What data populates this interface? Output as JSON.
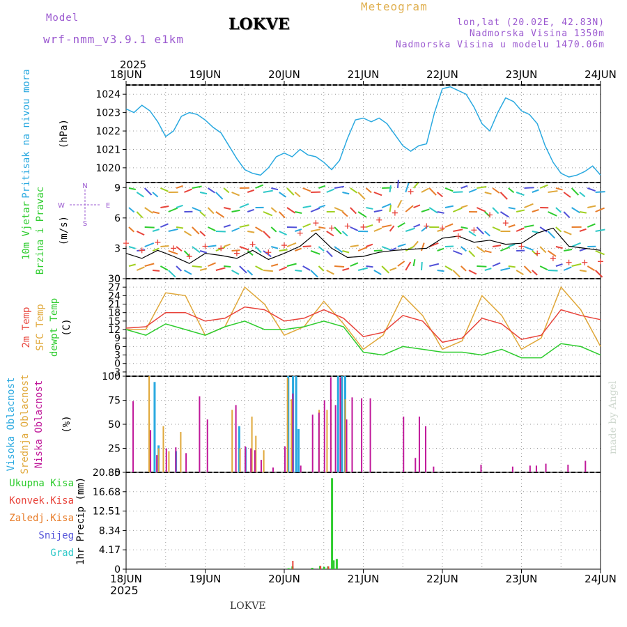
{
  "header": {
    "model_label": "Model",
    "model_name": "wrf-nmm_v3.9.1 e1km",
    "title": "LOKVE",
    "meteogram": "Meteogram",
    "lonlat": "lon,lat (20.02E, 42.83N)",
    "altitude": "Nadmorska Visina 1350m",
    "model_altitude": "Nadmorska Visina u modelu 1470.06m",
    "year_top": "2025",
    "year_bottom": "2025",
    "footer": "LOKVE",
    "watermark": "made by Angel"
  },
  "colors": {
    "pressure": "#2aa9e0",
    "temp2m": "#e8433a",
    "sfc": "#e0a83a",
    "dew": "#2ecc2e",
    "wind_speed": "#000000",
    "gust": "#e8433a",
    "high_cloud": "#2aa9e0",
    "mid_cloud": "#e0a83a",
    "low_cloud": "#c0189a",
    "total_precip": "#2ecc2e",
    "conv_precip": "#e8433a",
    "frozen_precip": "#e87d2a",
    "snow": "#5050d8",
    "hail": "#2ec8c8",
    "model_text": "#9b59d0",
    "meteogram_text": "#e0b050"
  },
  "chart_data": {
    "type": "line",
    "time_labels": [
      "18JUN",
      "19JUN",
      "20JUN",
      "21JUN",
      "22JUN",
      "23JUN",
      "24JUN"
    ],
    "panels": [
      {
        "id": "pressure",
        "ylabel_lines": [
          "Pritisak na nivou mora",
          "(hPa)"
        ],
        "yticks": [
          "1020",
          "1021",
          "1022",
          "1023",
          "1024"
        ],
        "ylim": [
          1019.2,
          1024.5
        ],
        "series": [
          {
            "name": "Pritisak na nivou mora",
            "x": [
              0,
              0.1,
              0.2,
              0.3,
              0.4,
              0.5,
              0.6,
              0.7,
              0.8,
              0.9,
              1.0,
              1.1,
              1.2,
              1.3,
              1.4,
              1.5,
              1.6,
              1.7,
              1.8,
              1.9,
              2.0,
              2.1,
              2.2,
              2.3,
              2.4,
              2.5,
              2.6,
              2.7,
              2.8,
              2.9,
              3.0,
              3.1,
              3.2,
              3.3,
              3.4,
              3.5,
              3.6,
              3.7,
              3.8,
              3.9,
              4.0,
              4.1,
              4.2,
              4.3,
              4.4,
              4.5,
              4.6,
              4.7,
              4.8,
              4.9,
              5.0,
              5.1,
              5.2,
              5.3,
              5.4,
              5.5,
              5.6,
              5.7,
              5.8,
              5.9,
              6.0
            ],
            "values": [
              1023.2,
              1023.0,
              1023.4,
              1023.1,
              1022.5,
              1021.7,
              1022.0,
              1022.8,
              1023.0,
              1022.9,
              1022.6,
              1022.2,
              1021.9,
              1021.2,
              1020.5,
              1019.9,
              1019.7,
              1019.6,
              1020.0,
              1020.6,
              1020.8,
              1020.6,
              1021.0,
              1020.7,
              1020.6,
              1020.3,
              1019.9,
              1020.4,
              1021.6,
              1022.6,
              1022.7,
              1022.5,
              1022.7,
              1022.4,
              1021.8,
              1021.2,
              1020.9,
              1021.2,
              1021.3,
              1023.0,
              1024.3,
              1024.4,
              1024.2,
              1024.0,
              1023.3,
              1022.4,
              1022.0,
              1023.0,
              1023.8,
              1023.6,
              1023.1,
              1022.9,
              1022.4,
              1021.2,
              1020.3,
              1019.7,
              1019.5,
              1019.6,
              1019.8,
              1020.1,
              1019.6
            ]
          }
        ]
      },
      {
        "id": "wind",
        "ylabel_lines": [
          "10m Vjetar",
          "Brzina i Pravac",
          "(m/s)"
        ],
        "compass": [
          "N",
          "S",
          "W",
          "E"
        ],
        "yticks": [
          "0",
          "3",
          "6",
          "9"
        ],
        "ylim": [
          0,
          9.5
        ],
        "series": [
          {
            "name": "speed",
            "x": [
              0,
              0.2,
              0.4,
              0.6,
              0.8,
              1.0,
              1.2,
              1.4,
              1.6,
              1.8,
              2.0,
              2.2,
              2.4,
              2.6,
              2.8,
              3.0,
              3.2,
              3.4,
              3.6,
              3.8,
              4.0,
              4.2,
              4.4,
              4.6,
              4.8,
              5.0,
              5.2,
              5.4,
              5.6,
              5.8,
              6.0
            ],
            "values": [
              2.5,
              2.0,
              2.8,
              2.2,
              1.5,
              2.5,
              2.3,
              2.0,
              2.8,
              1.9,
              2.5,
              3.2,
              4.5,
              3.0,
              2.1,
              2.2,
              2.6,
              2.8,
              2.9,
              3.0,
              4.0,
              4.2,
              3.6,
              3.8,
              3.4,
              3.5,
              4.5,
              5.0,
              3.2,
              3.0,
              2.8
            ]
          },
          {
            "name": "gust",
            "x": [
              0,
              0.2,
              0.4,
              0.6,
              0.8,
              1.0,
              1.2,
              1.4,
              1.6,
              1.8,
              2.0,
              2.2,
              2.4,
              2.6,
              2.8,
              3.0,
              3.2,
              3.4,
              3.6,
              3.8,
              4.0,
              4.2,
              4.4,
              4.6,
              4.8,
              5.0,
              5.2,
              5.4,
              5.6,
              5.8,
              6.0
            ],
            "values": [
              3.5,
              2.8,
              3.6,
              3.0,
              2.2,
              3.2,
              3.0,
              2.5,
              3.4,
              2.6,
              3.3,
              4.5,
              5.5,
              5.0,
              5.2,
              5.1,
              5.8,
              6.5,
              8.6,
              5.2,
              5.0,
              4.2,
              4.8,
              6.3,
              5.5,
              3.2,
              2.5,
              2.0,
              1.6,
              1.6,
              1.7
            ]
          }
        ]
      },
      {
        "id": "temperature",
        "ylabel_lines": [
          "2m Temp",
          "SFC Temp",
          "dewpt Temp",
          "(C)"
        ],
        "yticks": [
          "-3",
          "0",
          "3",
          "6",
          "9",
          "12",
          "15",
          "18",
          "21",
          "24",
          "27",
          "30"
        ],
        "ylim": [
          -4.5,
          30
        ],
        "series": [
          {
            "name": "2m Temp",
            "x": [
              0,
              0.25,
              0.5,
              0.75,
              1.0,
              1.25,
              1.5,
              1.75,
              2.0,
              2.25,
              2.5,
              2.75,
              3.0,
              3.25,
              3.5,
              3.75,
              4.0,
              4.25,
              4.5,
              4.75,
              5.0,
              5.25,
              5.5,
              5.75,
              6.0
            ],
            "values": [
              12.5,
              13,
              18,
              18,
              15,
              16,
              20,
              19,
              15,
              16,
              19,
              16,
              9.5,
              11,
              17,
              15,
              7.5,
              9,
              16,
              14,
              8.5,
              10,
              19,
              17,
              15.5
            ]
          },
          {
            "name": "SFC Temp",
            "x": [
              0,
              0.25,
              0.5,
              0.75,
              1.0,
              1.25,
              1.5,
              1.75,
              2.0,
              2.25,
              2.5,
              2.75,
              3.0,
              3.25,
              3.5,
              3.75,
              4.0,
              4.25,
              4.5,
              4.75,
              5.0,
              5.25,
              5.5,
              5.75,
              6.0
            ],
            "values": [
              12,
              12,
              25,
              24,
              10,
              13,
              27,
              21,
              10,
              13,
              22,
              14,
              5,
              10,
              24,
              17,
              5,
              8,
              24,
              17,
              5,
              9,
              27,
              19,
              6
            ]
          },
          {
            "name": "dewpt Temp",
            "x": [
              0,
              0.25,
              0.5,
              0.75,
              1.0,
              1.25,
              1.5,
              1.75,
              2.0,
              2.25,
              2.5,
              2.75,
              3.0,
              3.25,
              3.5,
              3.75,
              4.0,
              4.25,
              4.5,
              4.75,
              5.0,
              5.25,
              5.5,
              5.75,
              6.0
            ],
            "values": [
              12,
              10,
              14,
              12,
              10,
              13,
              15,
              12,
              12,
              13,
              15,
              13,
              4,
              3,
              6,
              5,
              4,
              4,
              3,
              5,
              2,
              2,
              7,
              6,
              3
            ]
          }
        ]
      },
      {
        "id": "clouds",
        "ylabel_lines": [
          "Visoka Oblacnost",
          "Srednja Oblacnost",
          "Niska Oblacnost",
          "(%)"
        ],
        "yticks": [
          "0",
          "25",
          "50",
          "75",
          "100"
        ],
        "ylim": [
          0,
          100
        ],
        "series": [
          {
            "name": "Visoka Oblacnost",
            "x": [
              0.33,
              0.38,
              0.6,
              1.4,
              1.48,
              2.02,
              2.08,
              2.12,
              2.15,
              2.65,
              2.7,
              2.74
            ],
            "values": [
              94,
              28,
              22,
              48,
              26,
              100,
              100,
              100,
              45,
              100,
              100,
              100
            ]
          },
          {
            "name": "Srednja Oblacnost",
            "x": [
              0.3,
              0.42,
              0.48,
              0.55,
              0.7,
              1.35,
              1.45,
              1.6,
              1.65,
              1.75,
              2.05,
              2.1,
              2.45,
              2.55,
              2.6,
              2.72,
              2.78
            ],
            "values": [
              100,
              25,
              48,
              22,
              42,
              65,
              25,
              58,
              38,
              23,
              98,
              76,
              65,
              65,
              76,
              98,
              76
            ]
          },
          {
            "name": "Niska Oblacnost",
            "x": [
              0.08,
              0.3,
              0.38,
              0.5,
              0.62,
              0.75,
              0.92,
              1.02,
              1.38,
              1.5,
              1.57,
              1.62,
              1.7,
              1.85,
              2.0,
              2.1,
              2.2,
              2.35,
              2.43,
              2.5,
              2.58,
              2.64,
              2.7,
              2.78,
              2.85,
              2.97,
              3.08,
              3.5,
              3.65,
              3.7,
              3.78,
              3.88,
              4.48,
              4.88,
              5.1,
              5.18,
              5.3,
              5.58,
              5.8
            ],
            "values": [
              74,
              44,
              18,
              25,
              26,
              20,
              79,
              55,
              70,
              27,
              25,
              23,
              13,
              5,
              27,
              82,
              7,
              60,
              62,
              75,
              99,
              70,
              99,
              55,
              78,
              77,
              77,
              58,
              15,
              58,
              48,
              6,
              8,
              6,
              7,
              7,
              9,
              8,
              12
            ]
          }
        ]
      },
      {
        "id": "precip",
        "ylabel_lines": [
          "1hr Precip (mm)"
        ],
        "legend": [
          "Ukupna Kisa",
          "Konvek.Kisa",
          "Zaledj.Kisa",
          "Snijeg",
          "Grad"
        ],
        "yticks": [
          "0",
          "4.17",
          "8.34",
          "12.51",
          "16.68",
          "20.85"
        ],
        "ylim": [
          0,
          20.85
        ],
        "series": [
          {
            "name": "Ukupna Kisa",
            "x": [
              2.05,
              2.1,
              2.35,
              2.45,
              2.5,
              2.55,
              2.6,
              2.62,
              2.66
            ],
            "values": [
              0.2,
              0.6,
              0.3,
              0.7,
              0.5,
              0.6,
              19.6,
              1.9,
              2.2
            ]
          },
          {
            "name": "Konvek.Kisa",
            "x": [
              2.1,
              2.45,
              2.55
            ],
            "values": [
              1.8,
              0.7,
              0.6
            ]
          }
        ]
      }
    ]
  }
}
